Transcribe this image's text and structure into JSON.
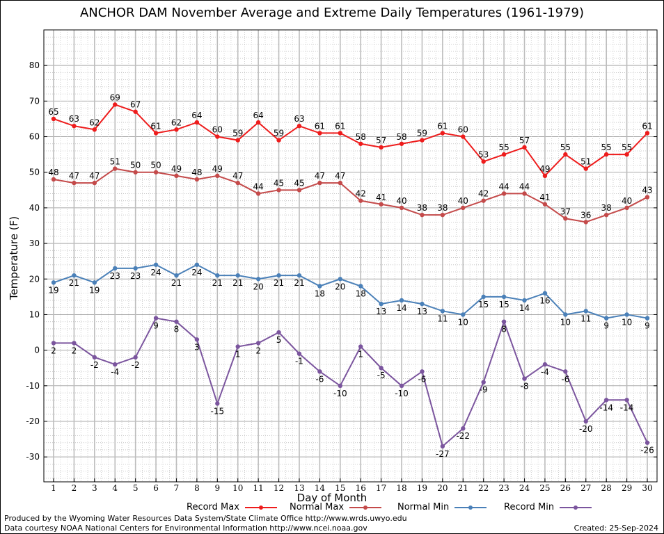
{
  "chart_data": {
    "type": "line",
    "title": "ANCHOR DAM November Average and Extreme Daily Temperatures (1961-1979)",
    "xlabel": "Day of Month",
    "ylabel": "Temperature (F)",
    "x": [
      1,
      2,
      3,
      4,
      5,
      6,
      7,
      8,
      9,
      10,
      11,
      12,
      13,
      14,
      15,
      16,
      17,
      18,
      19,
      20,
      21,
      22,
      23,
      24,
      25,
      26,
      27,
      28,
      29,
      30
    ],
    "ylim": [
      -37,
      90
    ],
    "yticks": [
      -30,
      -20,
      -10,
      0,
      10,
      20,
      30,
      40,
      50,
      60,
      70,
      80
    ],
    "grid": true,
    "legend_position": "bottom",
    "series": [
      {
        "name": "Record Max",
        "color": "#ee1c1c",
        "values": [
          65,
          63,
          62,
          69,
          67,
          61,
          62,
          64,
          60,
          59,
          64,
          59,
          63,
          61,
          61,
          58,
          57,
          58,
          59,
          61,
          60,
          53,
          55,
          57,
          49,
          55,
          51,
          55,
          55,
          61
        ]
      },
      {
        "name": "Normal Max",
        "color": "#c44a4a",
        "values": [
          48,
          47,
          47,
          51,
          50,
          50,
          49,
          48,
          49,
          47,
          44,
          45,
          45,
          47,
          47,
          42,
          41,
          40,
          38,
          38,
          40,
          42,
          44,
          44,
          41,
          37,
          36,
          38,
          40,
          43
        ]
      },
      {
        "name": "Normal Min",
        "color": "#4a80b8",
        "values": [
          19,
          21,
          19,
          23,
          23,
          24,
          21,
          24,
          21,
          21,
          20,
          21,
          21,
          18,
          20,
          18,
          13,
          14,
          13,
          11,
          10,
          15,
          15,
          14,
          16,
          10,
          11,
          9,
          10,
          9
        ]
      },
      {
        "name": "Record Min",
        "color": "#7b559e",
        "values": [
          2,
          2,
          -2,
          -4,
          -2,
          9,
          8,
          3,
          -15,
          1,
          2,
          5,
          -1,
          -6,
          -10,
          1,
          -5,
          -10,
          -6,
          -27,
          -22,
          -9,
          8,
          -8,
          -4,
          -6,
          -20,
          -14,
          -14,
          -26
        ]
      }
    ]
  },
  "footer": {
    "produced_by": "Produced by the Wyoming Water Resources Data System/State Climate Office http://www.wrds.uwyo.edu",
    "courtesy": "Data courtesy NOAA National Centers for Environmental Information http://www.ncei.noaa.gov",
    "created": "Created:  25-Sep-2024"
  }
}
